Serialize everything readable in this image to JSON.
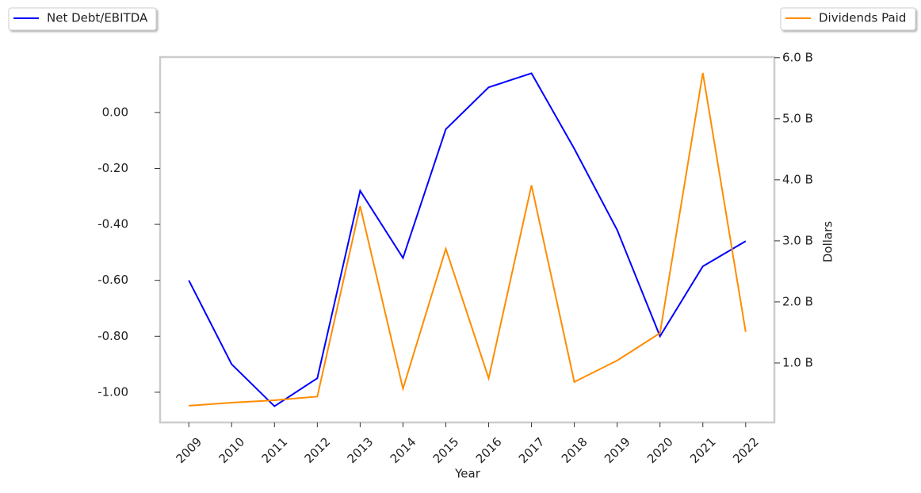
{
  "chart_data": {
    "type": "line",
    "x": [
      2009,
      2010,
      2011,
      2012,
      2013,
      2014,
      2015,
      2016,
      2017,
      2018,
      2019,
      2020,
      2021,
      2022
    ],
    "xlim": [
      2008.33,
      2022.67
    ],
    "xticks": [
      2009,
      2010,
      2011,
      2012,
      2013,
      2014,
      2015,
      2016,
      2017,
      2018,
      2019,
      2020,
      2021,
      2022
    ],
    "xlabel": "Year",
    "y2label": "Dollars",
    "ylim": [
      -1.108,
      0.198
    ],
    "yticks": [
      {
        "value": 0,
        "label": "0.00"
      },
      {
        "value": -0.2,
        "label": "-0.20"
      },
      {
        "value": -0.4,
        "label": "-0.40"
      },
      {
        "value": -0.6,
        "label": "-0.60"
      },
      {
        "value": -0.8,
        "label": "-0.80"
      },
      {
        "value": -1.0,
        "label": "-1.00"
      }
    ],
    "y2lim": [
      26000000,
      6010000000
    ],
    "y2ticks": [
      {
        "value": 1000000000,
        "label": "1.0 B"
      },
      {
        "value": 2000000000,
        "label": "2.0 B"
      },
      {
        "value": 3000000000,
        "label": "3.0 B"
      },
      {
        "value": 4000000000,
        "label": "4.0 B"
      },
      {
        "value": 5000000000,
        "label": "5.0 B"
      },
      {
        "value": 6000000000,
        "label": "6.0 B"
      }
    ],
    "series": [
      {
        "name": "Net Debt/EBITDA",
        "color": "#0000ff",
        "values": [
          -0.6,
          -0.9,
          -1.05,
          -0.95,
          -0.28,
          -0.52,
          -0.06,
          0.09,
          0.14,
          -0.13,
          -0.42,
          -0.8,
          -0.55,
          -0.46
        ]
      },
      {
        "name": "Dividends Paid",
        "color": "#ff8c00",
        "axis": "y2",
        "values": [
          300000000,
          350000000,
          390000000,
          450000000,
          3570000000,
          580000000,
          2870000000,
          750000000,
          3910000000,
          690000000,
          1040000000,
          1490000000,
          5750000000,
          1510000000
        ]
      }
    ]
  }
}
